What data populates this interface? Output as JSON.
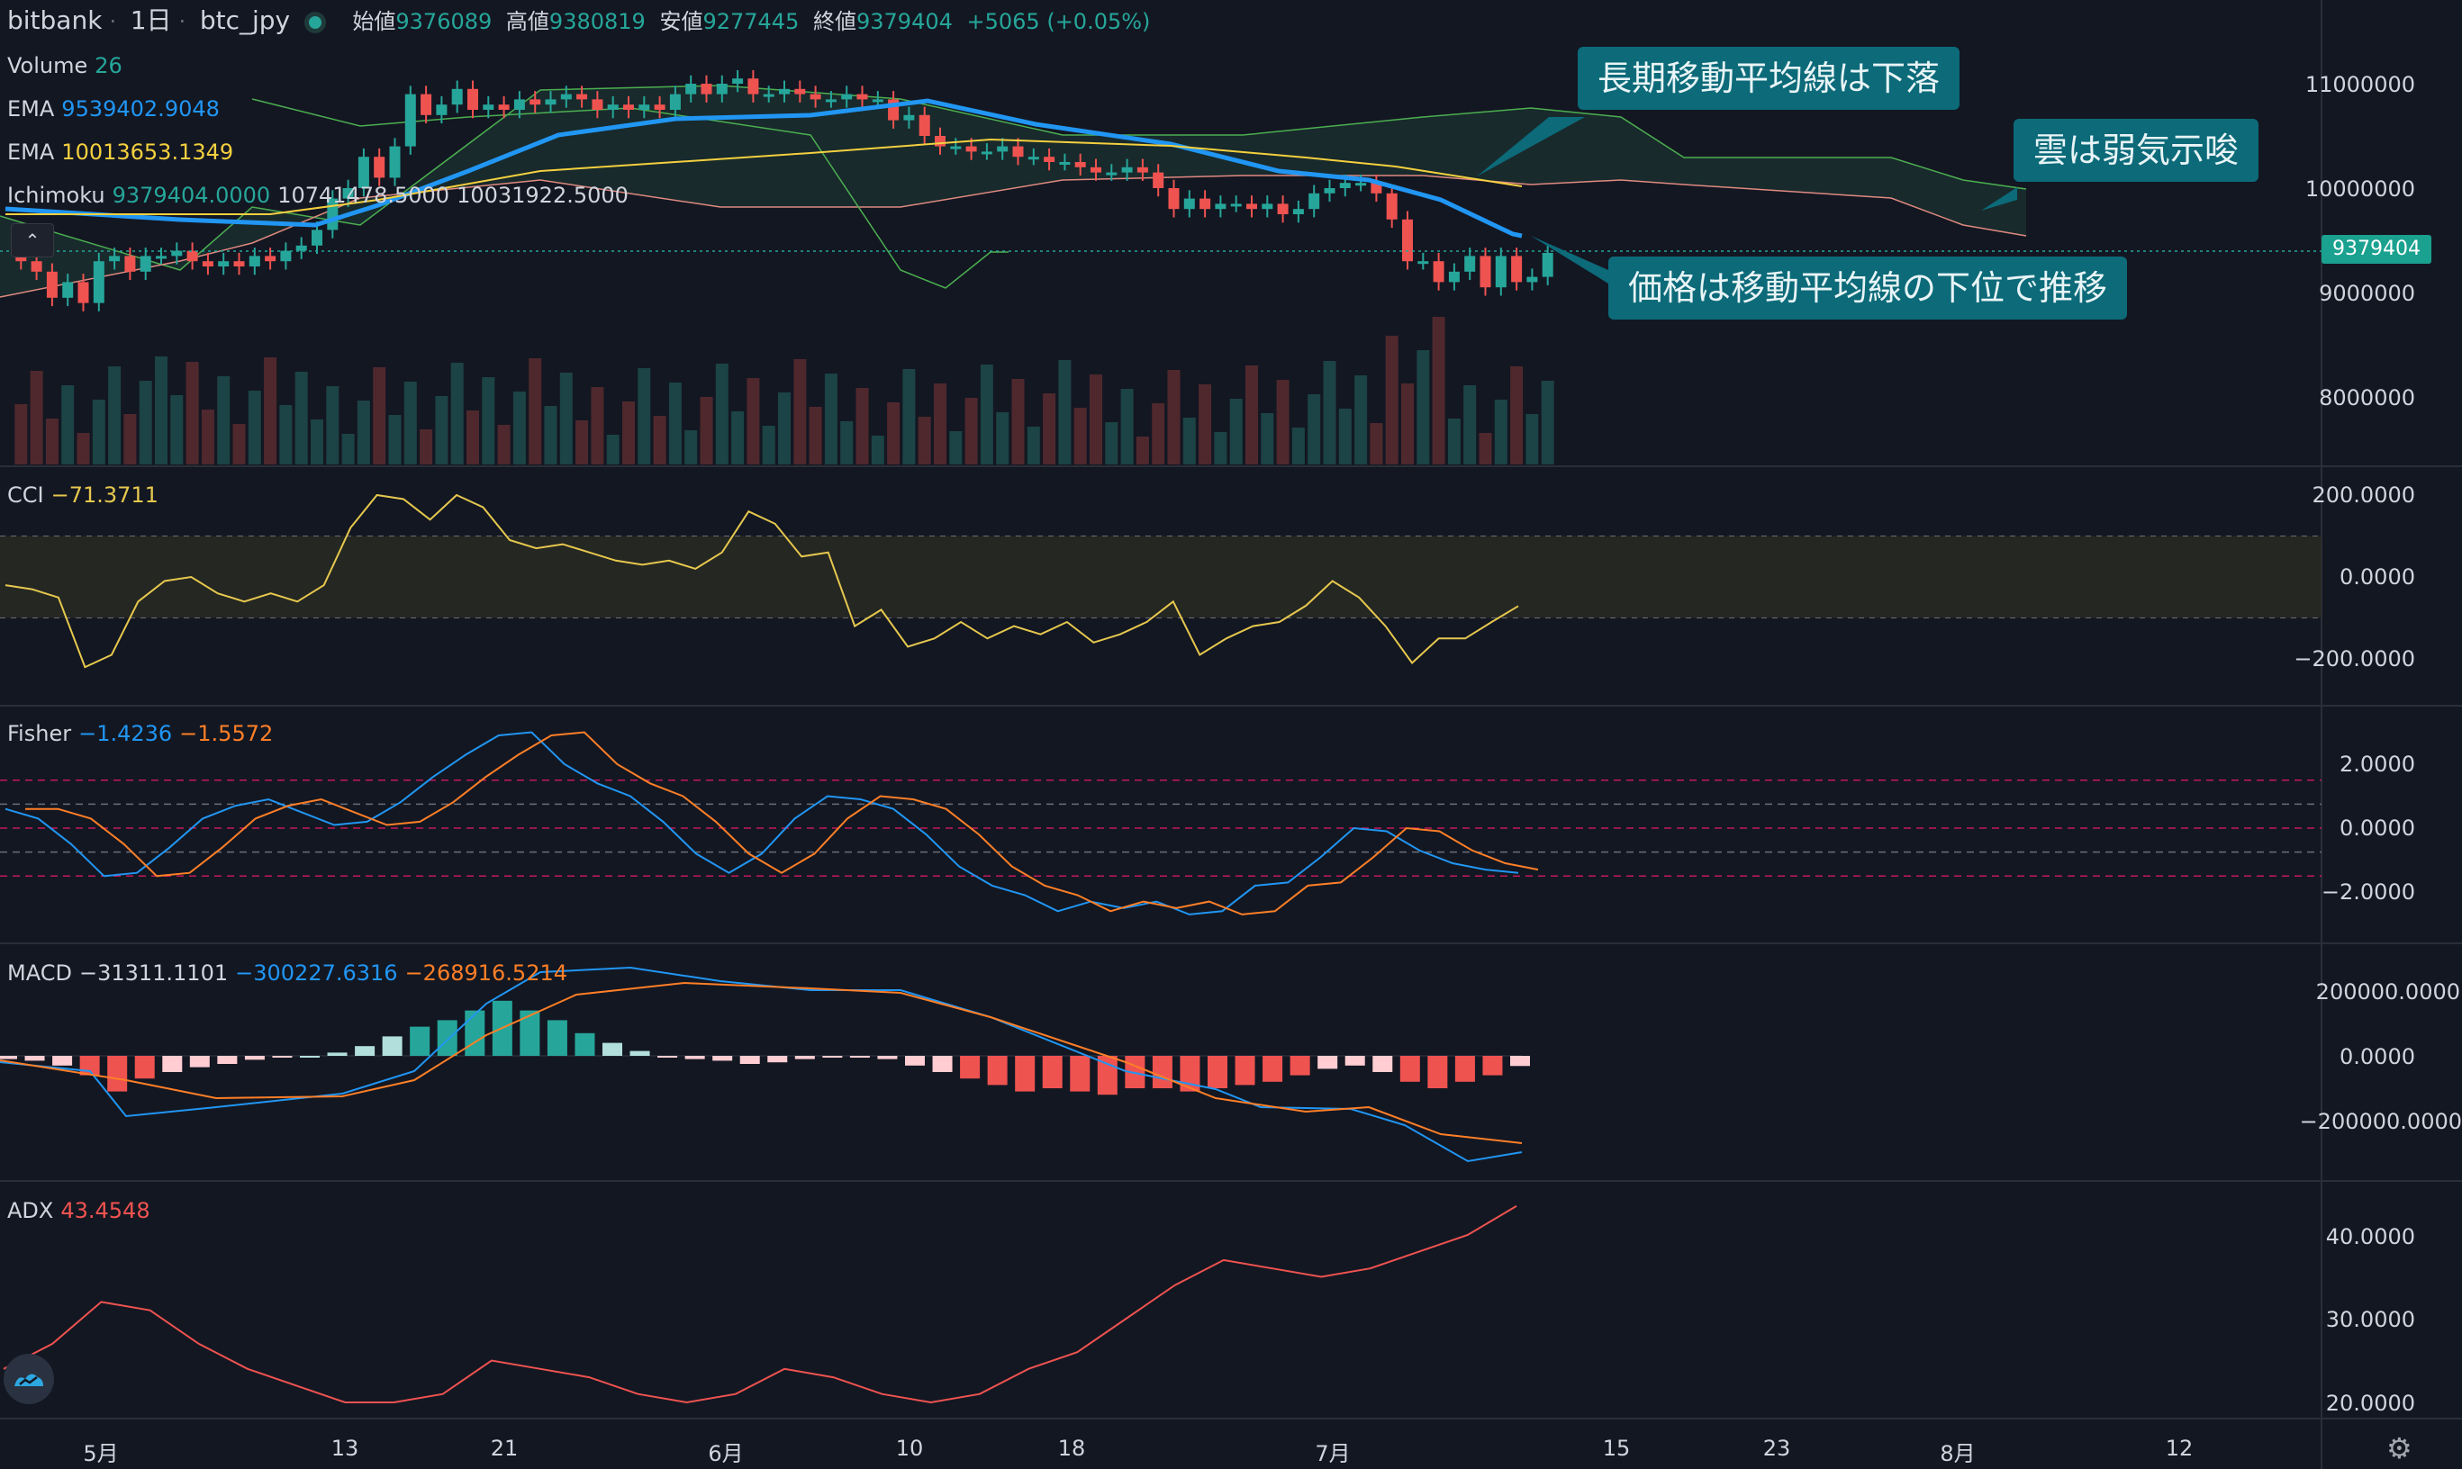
{
  "header": {
    "exchange": "bitbank",
    "interval": "1日",
    "symbol": "btc_jpy",
    "open_label": "始値",
    "open": "9376089",
    "high_label": "高値",
    "high": "9380819",
    "low_label": "安値",
    "low": "9277445",
    "close_label": "終値",
    "close": "9379404",
    "change": "+5065 (+0.05%)"
  },
  "legends": {
    "volume_label": "Volume",
    "volume_value": "26",
    "ema1_label": "EMA",
    "ema1_value": "9539402.9048",
    "ema2_label": "EMA",
    "ema2_value": "10013653.1349",
    "ichimoku_label": "Ichimoku",
    "ichimoku_v1": "9379404.0000",
    "ichimoku_v2": "10741478.5000",
    "ichimoku_v3": "10031922.5000",
    "cci_label": "CCI",
    "cci_value": "−71.3711",
    "fisher_label": "Fisher",
    "fisher_v1": "−1.4236",
    "fisher_v2": "−1.5572",
    "macd_label": "MACD",
    "macd_v1": "−31311.1101",
    "macd_v2": "−300227.6316",
    "macd_v3": "−268916.5214",
    "adx_label": "ADX",
    "adx_value": "43.4548"
  },
  "annotations": {
    "a1": "長期移動平均線は下落",
    "a2": "雲は弱気示唆",
    "a3": "価格は移動平均線の下位で推移"
  },
  "price_axis": [
    "11000000",
    "10000000",
    "9000000",
    "8000000"
  ],
  "price_badge": "9379404",
  "cci_axis": [
    "200.0000",
    "0.0000",
    "−200.0000"
  ],
  "fisher_axis": [
    "2.0000",
    "0.0000",
    "−2.0000"
  ],
  "macd_axis": [
    "200000.0000",
    "0.0000",
    "−200000.0000"
  ],
  "adx_axis": [
    "40.0000",
    "30.0000",
    "20.0000"
  ],
  "x_axis": [
    "5月",
    "13",
    "21",
    "6月",
    "10",
    "18",
    "7月",
    "15",
    "23",
    "8月",
    "12"
  ],
  "collapse_icon": "chevron-up-icon",
  "colors": {
    "bg": "#131722",
    "up": "#26a69a",
    "down": "#ef5350",
    "ema_fast": "#2196f3",
    "ema_slow": "#f4d03f",
    "cci": "#e6c84e",
    "fisher": "#2196f3",
    "fisher_trigger": "#ff7f27",
    "macd": "#2196f3",
    "signal": "#ff7f27",
    "adx": "#ef5350",
    "note": "#0c6a79"
  },
  "chart_data": {
    "type": "line",
    "title": "",
    "cci": [
      -20,
      -30,
      -50,
      -220,
      -190,
      -60,
      -10,
      0,
      -40,
      -60,
      -40,
      -60,
      -20,
      120,
      200,
      190,
      140,
      200,
      170,
      90,
      70,
      80,
      60,
      40,
      30,
      40,
      20,
      60,
      160,
      130,
      50,
      60,
      -120,
      -80,
      -170,
      -150,
      -110,
      -150,
      -120,
      -140,
      -110,
      -160,
      -140,
      -110,
      -60,
      -190,
      -150,
      -120,
      -110,
      -70,
      -10,
      -50,
      -120,
      -210,
      -150,
      -150,
      -110,
      -71
    ],
    "fisher": [
      0.6,
      0.3,
      -0.5,
      -1.5,
      -1.4,
      -0.6,
      0.3,
      0.7,
      0.9,
      0.5,
      0.1,
      0.2,
      0.8,
      1.6,
      2.3,
      2.9,
      3.0,
      2.0,
      1.4,
      1.0,
      0.2,
      -0.8,
      -1.4,
      -0.8,
      0.3,
      1.0,
      0.9,
      0.6,
      -0.2,
      -1.2,
      -1.8,
      -2.1,
      -2.6,
      -2.3,
      -2.5,
      -2.3,
      -2.7,
      -2.6,
      -1.8,
      -1.7,
      -0.9,
      0.0,
      -0.1,
      -0.7,
      -1.1,
      -1.3,
      -1.4
    ],
    "macd_hist": [
      -10000,
      -15000,
      -30000,
      -60000,
      -110000,
      -70000,
      -50000,
      -35000,
      -25000,
      -12000,
      -5000,
      0,
      10000,
      30000,
      60000,
      90000,
      110000,
      140000,
      170000,
      140000,
      110000,
      70000,
      40000,
      15000,
      -5000,
      -10000,
      -15000,
      -25000,
      -20000,
      -10000,
      -5000,
      -3000,
      -10000,
      -30000,
      -50000,
      -70000,
      -90000,
      -110000,
      -100000,
      -110000,
      -120000,
      -100000,
      -100000,
      -110000,
      -100000,
      -90000,
      -80000,
      -60000,
      -40000,
      -30000,
      -50000,
      -80000,
      -100000,
      -80000,
      -60000,
      -31311
    ],
    "adx": [
      24,
      27,
      32,
      31,
      27,
      24,
      22,
      20,
      20,
      21,
      25,
      24,
      23,
      21,
      20,
      21,
      24,
      23,
      21,
      20,
      21,
      24,
      26,
      30,
      34,
      37,
      36,
      35,
      36,
      38,
      40,
      43.45
    ]
  }
}
